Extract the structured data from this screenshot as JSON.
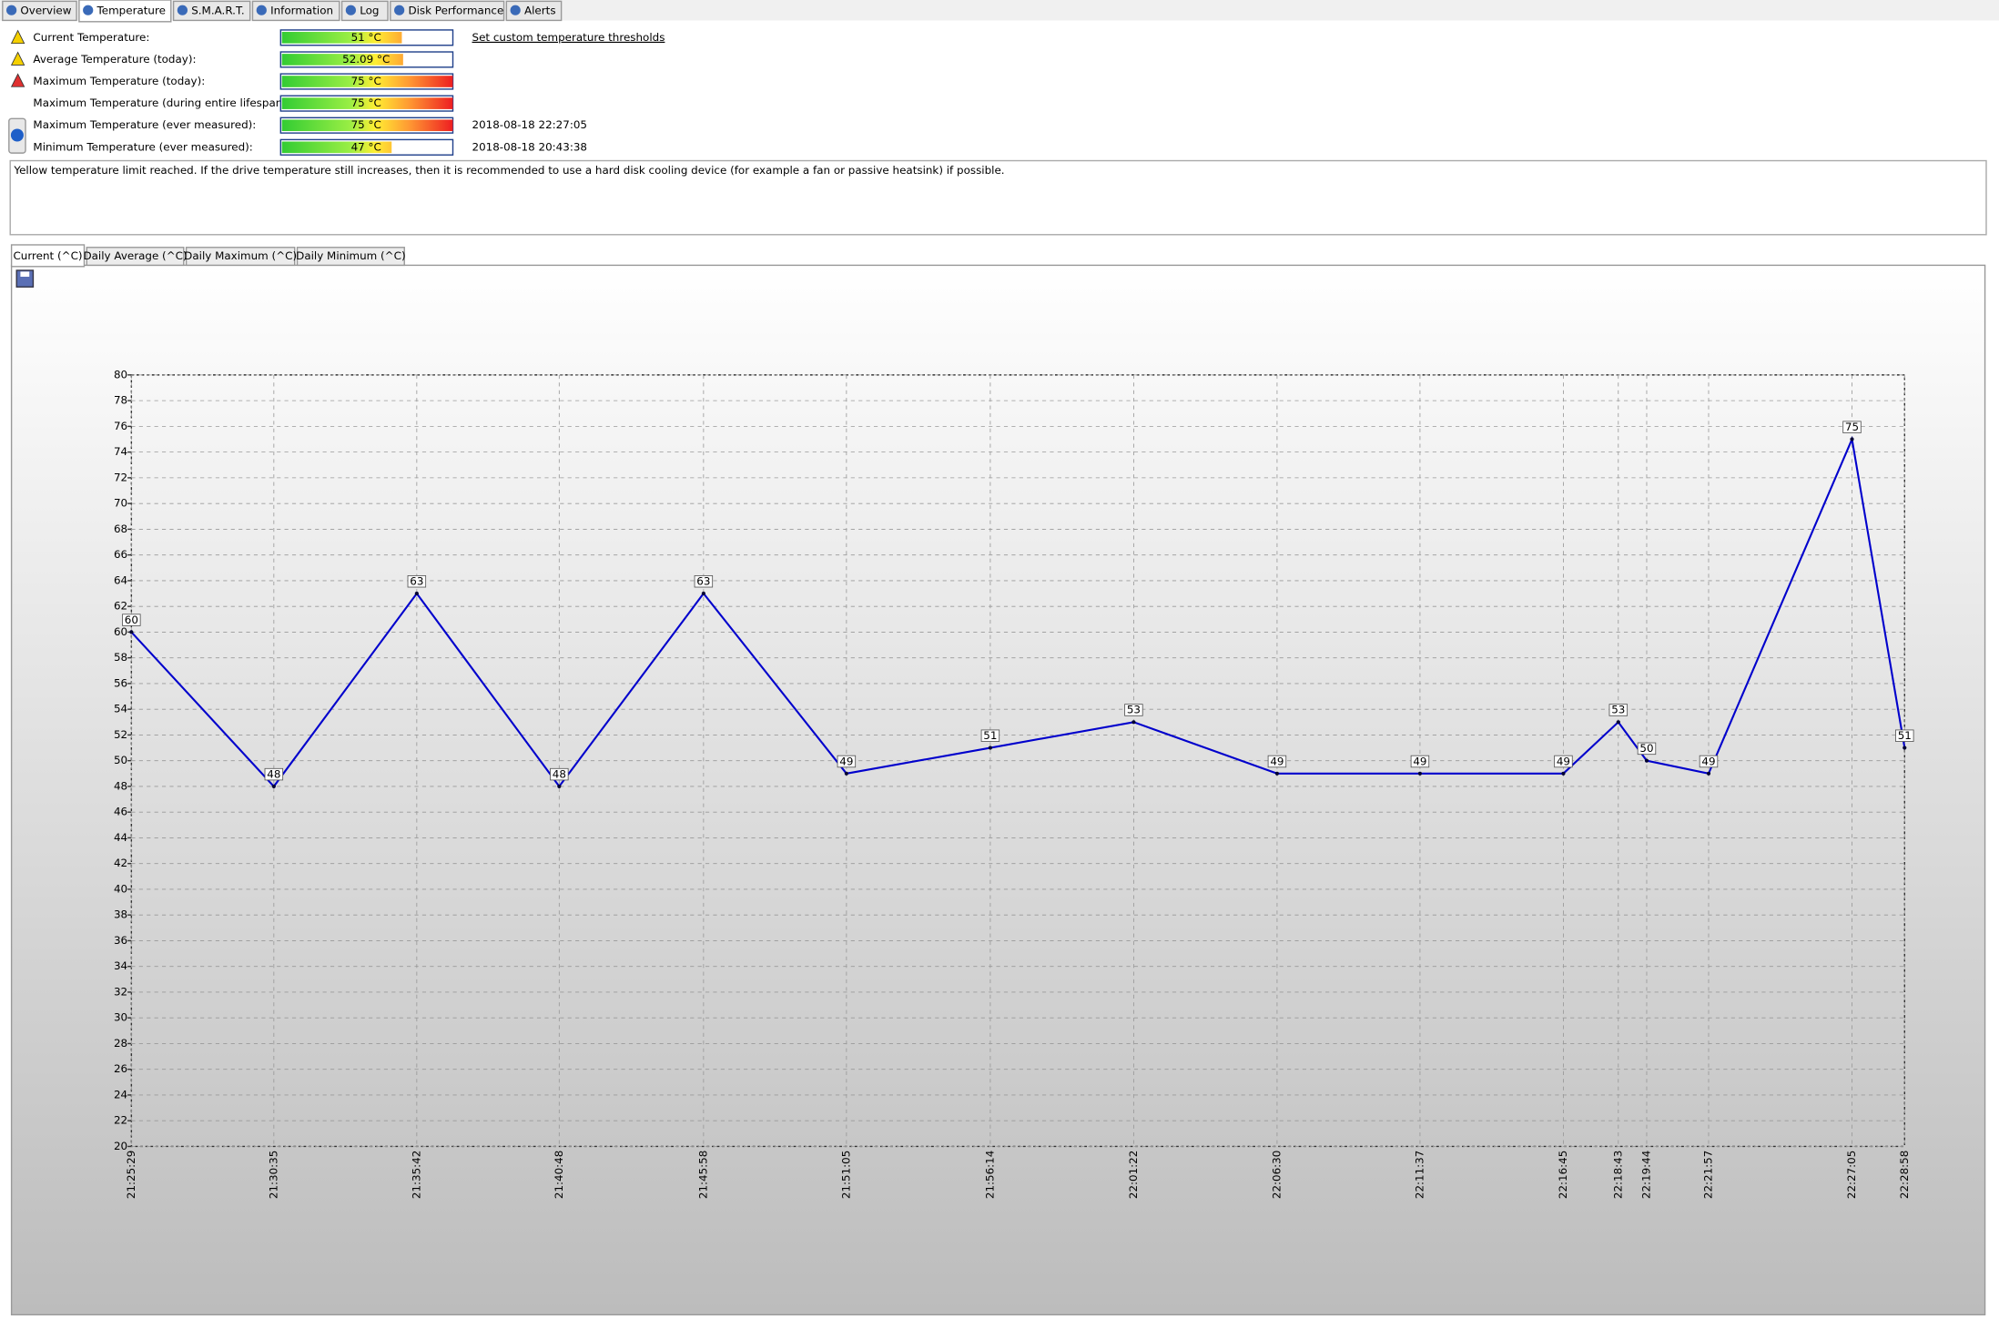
{
  "tabs": [
    "Overview",
    "Temperature",
    "S.M.A.R.T.",
    "Information",
    "Log",
    "Disk Performance",
    "Alerts"
  ],
  "temperatures": [
    {
      "label": "Current Temperature:",
      "value": "51 °C"
    },
    {
      "label": "Average Temperature (today):",
      "value": "52.09 °C"
    },
    {
      "label": "Maximum Temperature (today):",
      "value": "75 °C"
    },
    {
      "label": "Maximum Temperature (during entire lifespan):",
      "value": "75 °C"
    },
    {
      "label": "Maximum Temperature (ever measured):",
      "value": "75 °C",
      "date": "2018-08-18 22:27:05"
    },
    {
      "label": "Minimum Temperature (ever measured):",
      "value": "47 °C",
      "date": "2018-08-18 20:43:38"
    }
  ],
  "threshold_link": "Set custom temperature thresholds",
  "message": "Yellow temperature limit reached. If the drive temperature still increases, then it is recommended to use a hard disk cooling device (for example a fan or passive heatsink) if possible.",
  "chart_tabs": [
    "Current (^C)",
    "Daily Average (^C)",
    "Daily Maximum (^C)",
    "Daily Minimum (^C)"
  ],
  "chart_data": {
    "type": "line",
    "x": [
      "21:25:29",
      "21:30:35",
      "21:35:42",
      "21:40:48",
      "21:45:58",
      "21:51:05",
      "21:56:14",
      "22:01:22",
      "22:06:30",
      "22:11:37",
      "22:16:45",
      "22:18:43",
      "22:19:44",
      "22:21:57",
      "22:27:05",
      "22:28:58"
    ],
    "values": [
      60,
      48,
      63,
      48,
      63,
      49,
      51,
      53,
      49,
      49,
      49,
      53,
      50,
      49,
      75,
      51
    ],
    "color": "#0000cc",
    "ylim": [
      20,
      80
    ],
    "yticks": [
      20,
      22,
      24,
      26,
      28,
      30,
      32,
      34,
      36,
      38,
      40,
      42,
      44,
      46,
      48,
      50,
      52,
      54,
      56,
      58,
      60,
      62,
      64,
      66,
      68,
      70,
      72,
      74,
      76,
      78,
      80
    ],
    "grid": true,
    "data_labels": true
  }
}
